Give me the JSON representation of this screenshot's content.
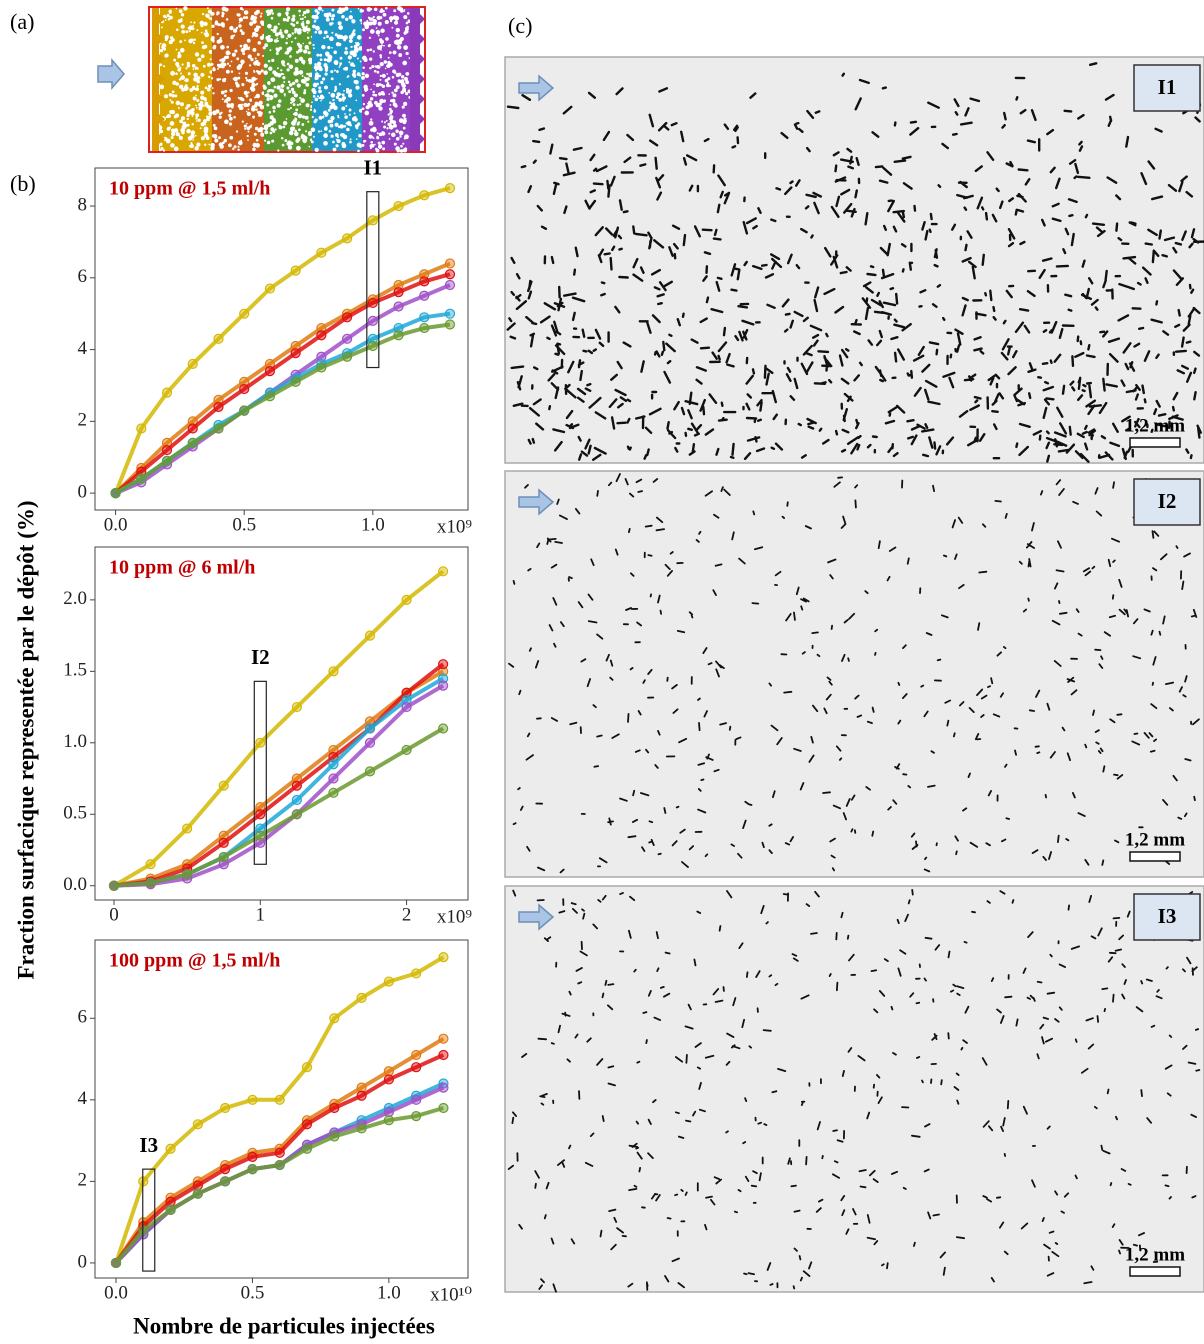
{
  "figure": {
    "panel_labels": [
      "(a)",
      "(b)",
      "(c)"
    ],
    "y_axis_label": "Fraction surfacique representée par le dépôt (%)",
    "x_axis_label": "Nombre de particules injectées",
    "images": [
      {
        "label": "I1",
        "scale": "1,2 mm"
      },
      {
        "label": "I2",
        "scale": "1,2 mm"
      },
      {
        "label": "I3",
        "scale": "1,2 mm"
      }
    ]
  },
  "chart_data": [
    {
      "type": "line",
      "title": "10 ppm @ 1,5 ml/h",
      "title_color": "#c00000",
      "x": [
        0,
        0.1,
        0.2,
        0.3,
        0.4,
        0.5,
        0.6,
        0.7,
        0.8,
        0.9,
        1.0,
        1.1,
        1.2,
        1.3
      ],
      "series": [
        {
          "color": "#d4b800",
          "values": [
            0,
            1.8,
            2.8,
            3.6,
            4.3,
            5.0,
            5.7,
            6.2,
            6.7,
            7.1,
            7.6,
            8.0,
            8.3,
            8.5
          ]
        },
        {
          "color": "#e07b10",
          "values": [
            0,
            0.7,
            1.4,
            2.0,
            2.6,
            3.1,
            3.6,
            4.1,
            4.6,
            5.0,
            5.4,
            5.8,
            6.1,
            6.4
          ]
        },
        {
          "color": "#e01010",
          "values": [
            0,
            0.6,
            1.2,
            1.8,
            2.4,
            2.9,
            3.4,
            3.9,
            4.4,
            4.9,
            5.3,
            5.6,
            5.9,
            6.1
          ]
        },
        {
          "color": "#a050c8",
          "values": [
            0,
            0.3,
            0.8,
            1.3,
            1.8,
            2.3,
            2.8,
            3.3,
            3.8,
            4.3,
            4.8,
            5.2,
            5.5,
            5.8
          ]
        },
        {
          "color": "#20a8d8",
          "values": [
            0,
            0.4,
            0.9,
            1.4,
            1.9,
            2.3,
            2.8,
            3.2,
            3.6,
            3.9,
            4.3,
            4.6,
            4.9,
            5.0
          ]
        },
        {
          "color": "#6a9a30",
          "values": [
            0,
            0.4,
            0.9,
            1.4,
            1.8,
            2.3,
            2.7,
            3.1,
            3.5,
            3.8,
            4.1,
            4.4,
            4.6,
            4.7
          ]
        }
      ],
      "xlim": [
        -0.08,
        1.37
      ],
      "ylim": [
        -0.47,
        9.06
      ],
      "xticks": [
        {
          "value": 0,
          "label": "0.0"
        },
        0.5,
        {
          "value": 1,
          "label": "1.0"
        }
      ],
      "yticks": [
        0,
        2,
        4,
        6,
        8
      ],
      "x_multiplier": "x10⁹",
      "annotation": {
        "text": "I1",
        "x": 1.0,
        "y": [
          3.5,
          8.4
        ]
      }
    },
    {
      "type": "line",
      "title": "10 ppm @ 6 ml/h",
      "title_color": "#c00000",
      "x": [
        0,
        0.25,
        0.5,
        0.75,
        1.0,
        1.25,
        1.5,
        1.75,
        2.0,
        2.25
      ],
      "series": [
        {
          "color": "#d4b800",
          "values": [
            0,
            0.15,
            0.4,
            0.7,
            1.0,
            1.25,
            1.5,
            1.75,
            2.0,
            2.2
          ]
        },
        {
          "color": "#e07b10",
          "values": [
            0,
            0.05,
            0.15,
            0.35,
            0.55,
            0.75,
            0.95,
            1.15,
            1.35,
            1.5
          ]
        },
        {
          "color": "#e01010",
          "values": [
            0,
            0.03,
            0.12,
            0.3,
            0.5,
            0.7,
            0.9,
            1.1,
            1.35,
            1.55
          ]
        },
        {
          "color": "#20a8d8",
          "values": [
            0,
            0.02,
            0.08,
            0.2,
            0.4,
            0.6,
            0.85,
            1.1,
            1.3,
            1.45
          ]
        },
        {
          "color": "#a050c8",
          "values": [
            0,
            0.01,
            0.05,
            0.15,
            0.3,
            0.5,
            0.75,
            1.0,
            1.25,
            1.4
          ]
        },
        {
          "color": "#6a9a30",
          "values": [
            0,
            0.02,
            0.08,
            0.2,
            0.35,
            0.5,
            0.65,
            0.8,
            0.95,
            1.1
          ]
        }
      ],
      "xlim": [
        -0.13,
        2.42
      ],
      "ylim": [
        -0.1,
        2.37
      ],
      "xticks": [
        0,
        1,
        2
      ],
      "yticks": [
        {
          "value": 0,
          "label": "0.0"
        },
        0.5,
        {
          "value": 1,
          "label": "1.0"
        },
        1.5,
        {
          "value": 2,
          "label": "2.0"
        }
      ],
      "x_multiplier": "x10⁹",
      "annotation": {
        "text": "I2",
        "x": 1.0,
        "y": [
          0.15,
          1.43
        ]
      }
    },
    {
      "type": "line",
      "title": "100 ppm @ 1,5 ml/h",
      "title_color": "#c00000",
      "x": [
        0,
        0.1,
        0.2,
        0.3,
        0.4,
        0.5,
        0.6,
        0.7,
        0.8,
        0.9,
        1.0,
        1.1,
        1.2
      ],
      "series": [
        {
          "color": "#d4b800",
          "values": [
            0,
            2.0,
            2.8,
            3.4,
            3.8,
            4.0,
            4.0,
            4.8,
            6.0,
            6.5,
            6.9,
            7.1,
            7.5
          ]
        },
        {
          "color": "#e07b10",
          "values": [
            0,
            1.0,
            1.6,
            2.0,
            2.4,
            2.7,
            2.8,
            3.5,
            3.9,
            4.3,
            4.7,
            5.1,
            5.5
          ]
        },
        {
          "color": "#e01010",
          "values": [
            0,
            0.9,
            1.5,
            1.9,
            2.3,
            2.6,
            2.7,
            3.4,
            3.8,
            4.1,
            4.5,
            4.8,
            5.1
          ]
        },
        {
          "color": "#20a8d8",
          "values": [
            0,
            0.7,
            1.3,
            1.7,
            2.0,
            2.3,
            2.4,
            2.9,
            3.2,
            3.5,
            3.8,
            4.1,
            4.4
          ]
        },
        {
          "color": "#a050c8",
          "values": [
            0,
            0.7,
            1.3,
            1.7,
            2.0,
            2.3,
            2.4,
            2.9,
            3.2,
            3.4,
            3.7,
            4.0,
            4.3
          ]
        },
        {
          "color": "#6a9a30",
          "values": [
            0,
            0.8,
            1.3,
            1.7,
            2.0,
            2.3,
            2.4,
            2.8,
            3.1,
            3.3,
            3.5,
            3.6,
            3.8
          ]
        }
      ],
      "xlim": [
        -0.077,
        1.29
      ],
      "ylim": [
        -0.37,
        7.92
      ],
      "xticks": [
        {
          "value": 0,
          "label": "0.0"
        },
        0.5,
        {
          "value": 1,
          "label": "1.0"
        }
      ],
      "yticks": [
        0,
        2,
        4,
        6
      ],
      "x_multiplier": "x10¹⁰",
      "annotation": {
        "text": "I3",
        "x": 0.12,
        "y": [
          -0.2,
          2.3
        ]
      }
    }
  ]
}
